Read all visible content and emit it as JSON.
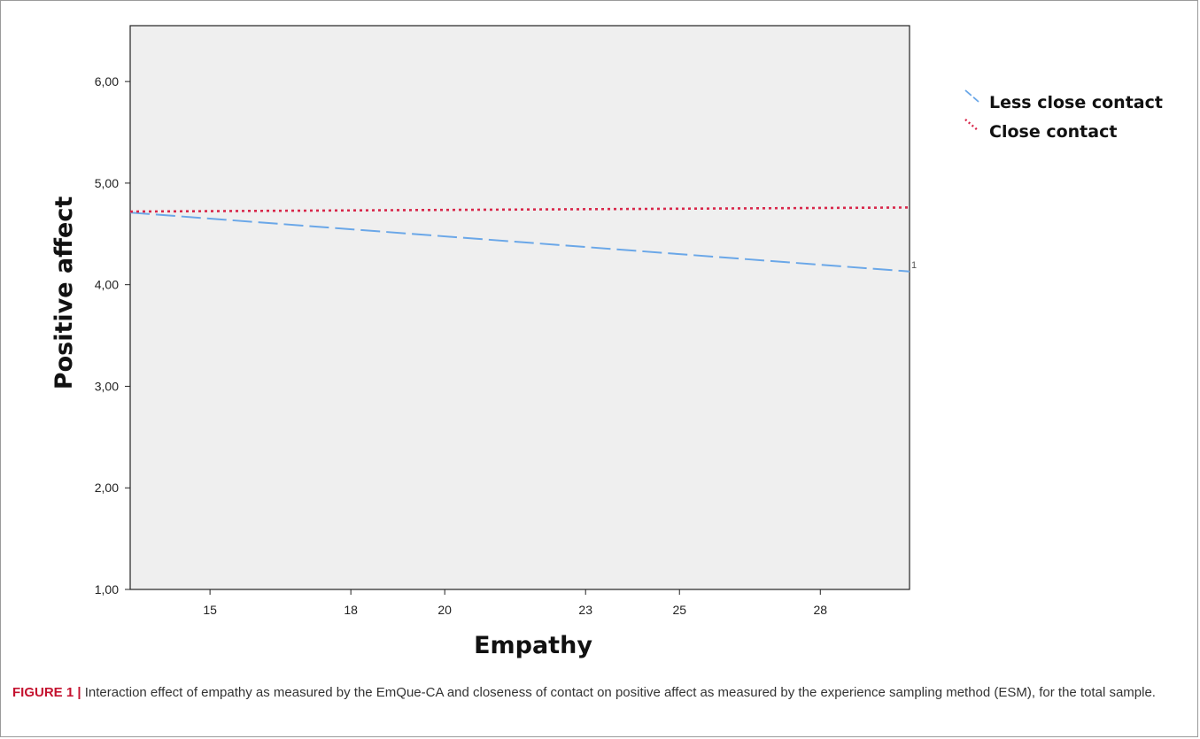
{
  "chart_data": {
    "type": "line",
    "title": "",
    "xlabel": "Empathy",
    "ylabel": "Positive affect",
    "x_ticks": [
      "15",
      "18",
      "20",
      "23",
      "25",
      "28"
    ],
    "y_ticks": [
      "1,00",
      "2,00",
      "3,00",
      "4,00",
      "5,00",
      "6,00"
    ],
    "xlim": [
      13.3,
      29.9
    ],
    "ylim": [
      1.0,
      6.55
    ],
    "grid": false,
    "legend_position": "right, outside plot",
    "plot_background": "#efefef",
    "series": [
      {
        "name": "Less close contact",
        "style": "dashed",
        "color": "#6aa7e8",
        "x": [
          13.3,
          29.9
        ],
        "y": [
          4.71,
          4.13
        ]
      },
      {
        "name": "Close contact",
        "style": "dotted",
        "color": "#d8274a",
        "x": [
          13.3,
          29.9
        ],
        "y": [
          4.72,
          4.76
        ]
      }
    ],
    "annotations": [
      "1"
    ]
  },
  "caption": {
    "label": "FIGURE 1 |",
    "text": " Interaction effect of empathy as measured by the EmQue-CA and closeness of contact on positive affect as measured by the experience sampling method (ESM), for the total sample."
  }
}
